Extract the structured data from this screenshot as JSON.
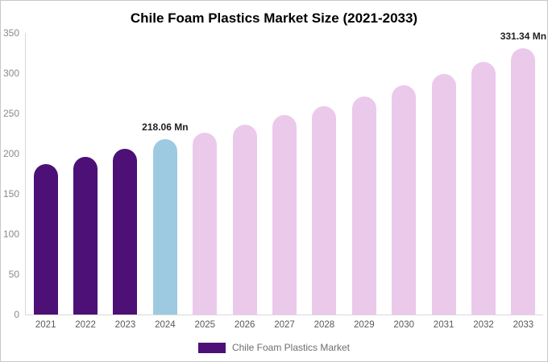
{
  "chart_data": {
    "type": "bar",
    "title": "Chile Foam Plastics Market Size (2021-2033)",
    "xlabel": "",
    "ylabel": "",
    "ylim": [
      0,
      350
    ],
    "yticks": [
      0,
      50,
      100,
      150,
      200,
      250,
      300,
      350
    ],
    "grid": false,
    "legend_position": "bottom",
    "categories": [
      "2021",
      "2022",
      "2023",
      "2024",
      "2025",
      "2026",
      "2027",
      "2028",
      "2029",
      "2030",
      "2031",
      "2032",
      "2033"
    ],
    "values": [
      187,
      196,
      206,
      218.06,
      226,
      236,
      248,
      259,
      271,
      285,
      299,
      314,
      331.34
    ],
    "bar_colors": [
      "#4c1077",
      "#4c1077",
      "#4c1077",
      "#9ecae1",
      "#ebc9eb",
      "#ebc9eb",
      "#ebc9eb",
      "#ebc9eb",
      "#ebc9eb",
      "#ebc9eb",
      "#ebc9eb",
      "#ebc9eb",
      "#ebc9eb"
    ],
    "value_labels": [
      {
        "index": 3,
        "text": "218.06 Mn"
      },
      {
        "index": 12,
        "text": "331.34 Mn"
      }
    ]
  },
  "colors": {
    "historical": "#4c1077",
    "current_year_highlight": "#9ecae1",
    "forecast": "#ebc9eb",
    "axis_line": "#d9d9d9"
  },
  "legend": {
    "label": "Chile Foam Plastics Market",
    "swatch_color": "#4c1077"
  }
}
